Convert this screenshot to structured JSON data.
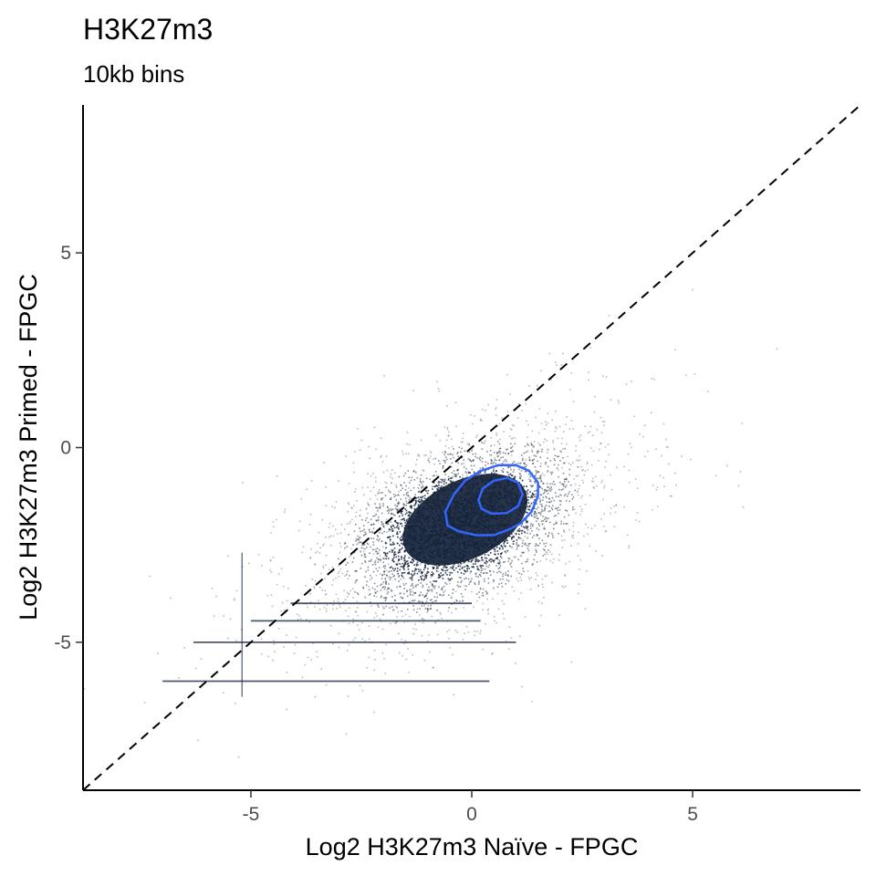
{
  "chart_data": {
    "type": "scatter",
    "title": "H3K27m3",
    "subtitle": "10kb bins",
    "xlabel": "Log2 H3K27m3 Naïve - FPGC",
    "ylabel": "Log2 H3K27m3 Primed - FPGC",
    "xlim": [
      -8.8,
      8.8
    ],
    "ylim": [
      -8.8,
      8.8
    ],
    "x_ticks": [
      -5,
      0,
      5
    ],
    "y_ticks": [
      -5,
      0,
      5
    ],
    "x_tick_labels": [
      "-5",
      "0",
      "5"
    ],
    "y_tick_labels": [
      "-5",
      "0",
      "5"
    ],
    "grid": false,
    "point_color": "#13223a",
    "contour_color": "#3366ff",
    "point_cloud": {
      "description": "dense 2D point cloud of 10kb bins",
      "center": [
        -0.3,
        -2.0
      ],
      "sd_major": 1.2,
      "sd_minor": 0.75,
      "angle_deg": 33
    },
    "density_contours": [
      {
        "level": "outer",
        "points": [
          [
            -0.6,
            -1.65
          ],
          [
            -0.4,
            -1.2
          ],
          [
            -0.15,
            -0.85
          ],
          [
            0.2,
            -0.6
          ],
          [
            0.6,
            -0.45
          ],
          [
            1.0,
            -0.45
          ],
          [
            1.3,
            -0.6
          ],
          [
            1.5,
            -0.9
          ],
          [
            1.5,
            -1.25
          ],
          [
            1.35,
            -1.65
          ],
          [
            1.1,
            -1.95
          ],
          [
            0.85,
            -2.1
          ],
          [
            0.5,
            -2.25
          ],
          [
            0.1,
            -2.25
          ],
          [
            -0.3,
            -2.15
          ],
          [
            -0.55,
            -2.0
          ]
        ]
      },
      {
        "level": "inner",
        "points": [
          [
            0.15,
            -1.35
          ],
          [
            0.25,
            -1.05
          ],
          [
            0.5,
            -0.85
          ],
          [
            0.8,
            -0.78
          ],
          [
            1.05,
            -0.9
          ],
          [
            1.15,
            -1.2
          ],
          [
            1.05,
            -1.5
          ],
          [
            0.8,
            -1.68
          ],
          [
            0.45,
            -1.7
          ],
          [
            0.22,
            -1.57
          ]
        ]
      }
    ],
    "reference_line": {
      "slope": 1,
      "intercept": 0,
      "style": "dashed",
      "color": "#000000"
    },
    "floor_lines": [
      {
        "y": -6.0,
        "x_from": -7.0,
        "x_to": 0.4
      },
      {
        "y": -5.0,
        "x_from": -6.3,
        "x_to": 1.0
      },
      {
        "y": -4.45,
        "x_from": -5.0,
        "x_to": 0.2
      },
      {
        "y": -4.0,
        "x_from": -4.1,
        "x_to": 0.0
      }
    ],
    "vertical_floor_lines": [
      {
        "x": -5.2,
        "y_from": -6.4,
        "y_to": -2.7
      }
    ]
  }
}
